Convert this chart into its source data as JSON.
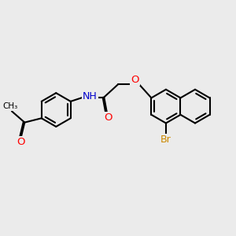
{
  "background_color": "#ebebeb",
  "bond_color": "#000000",
  "bond_width": 1.5,
  "atom_colors": {
    "O": "#ff0000",
    "N": "#0000cc",
    "Br": "#cc8800",
    "C": "#000000"
  },
  "font_size": 8.5,
  "fig_size": [
    3.0,
    3.0
  ],
  "dpi": 100
}
